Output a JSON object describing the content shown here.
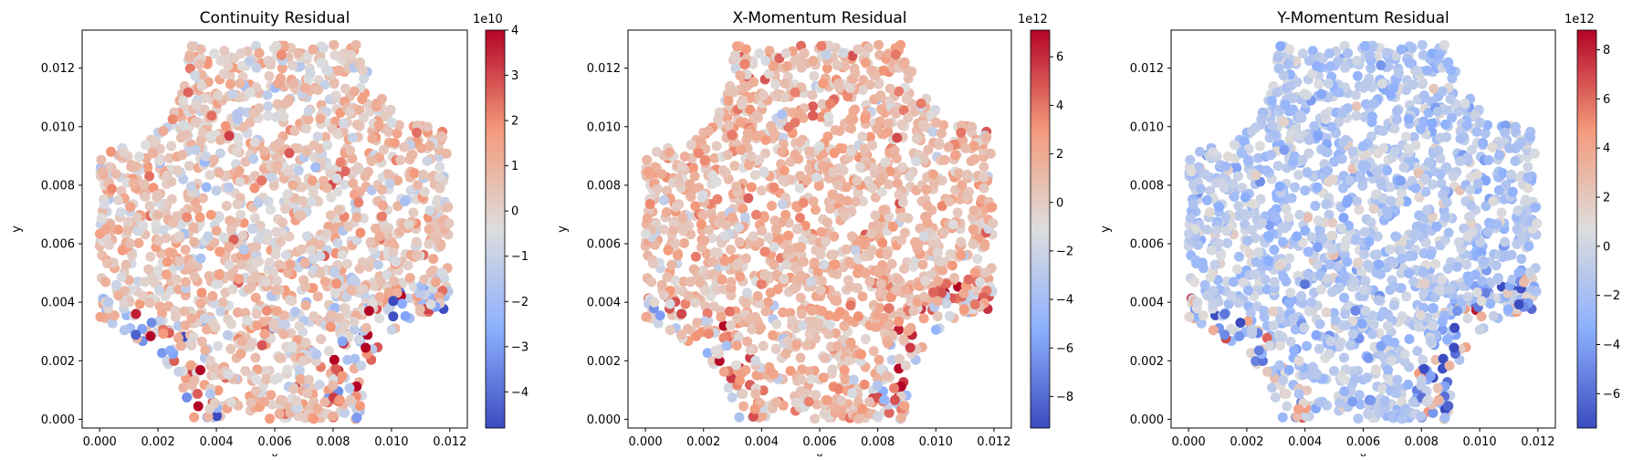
{
  "chart_data": [
    {
      "type": "scatter",
      "title": "Continuity Residual",
      "xlabel": "x",
      "ylabel": "y",
      "xlim": [
        -0.0006,
        0.0126
      ],
      "ylim": [
        -0.0003,
        0.0133
      ],
      "xticks": [
        "0.000",
        "0.002",
        "0.004",
        "0.006",
        "0.008",
        "0.010",
        "0.012"
      ],
      "yticks": [
        "0.000",
        "0.002",
        "0.004",
        "0.006",
        "0.008",
        "0.010",
        "0.012"
      ],
      "colorbar": {
        "range": [
          -4.8,
          4.0
        ],
        "ticks": [
          "4",
          "3",
          "2",
          "1",
          "0",
          "−1",
          "−2",
          "−3",
          "−4"
        ],
        "tick_values": [
          4,
          3,
          2,
          1,
          0,
          -1,
          -2,
          -3,
          -4
        ],
        "multiplier": "1e10",
        "colormap": "coolwarm"
      },
      "grid": false
    },
    {
      "type": "scatter",
      "title": "X-Momentum Residual",
      "xlabel": "x",
      "ylabel": "y",
      "xlim": [
        -0.0006,
        0.0126
      ],
      "ylim": [
        -0.0003,
        0.0133
      ],
      "xticks": [
        "0.000",
        "0.002",
        "0.004",
        "0.006",
        "0.008",
        "0.010",
        "0.012"
      ],
      "yticks": [
        "0.000",
        "0.002",
        "0.004",
        "0.006",
        "0.008",
        "0.010",
        "0.012"
      ],
      "colorbar": {
        "range": [
          -9.3,
          7.1
        ],
        "ticks": [
          "6",
          "4",
          "2",
          "0",
          "−2",
          "−4",
          "−6",
          "−8"
        ],
        "tick_values": [
          6,
          4,
          2,
          0,
          -2,
          -4,
          -6,
          -8
        ],
        "multiplier": "1e12",
        "colormap": "coolwarm"
      },
      "grid": false
    },
    {
      "type": "scatter",
      "title": "Y-Momentum Residual",
      "xlabel": "x",
      "ylabel": "y",
      "xlim": [
        -0.0006,
        0.0126
      ],
      "ylim": [
        -0.0003,
        0.0133
      ],
      "xticks": [
        "0.000",
        "0.002",
        "0.004",
        "0.006",
        "0.008",
        "0.010",
        "0.012"
      ],
      "yticks": [
        "0.000",
        "0.002",
        "0.004",
        "0.006",
        "0.008",
        "0.010",
        "0.012"
      ],
      "colorbar": {
        "range": [
          -7.4,
          8.8
        ],
        "ticks": [
          "8",
          "6",
          "4",
          "2",
          "0",
          "−2",
          "−4",
          "−6"
        ],
        "tick_values": [
          8,
          6,
          4,
          2,
          0,
          -2,
          -4,
          -6
        ],
        "multiplier": "1e12",
        "colormap": "coolwarm"
      },
      "grid": false
    }
  ]
}
